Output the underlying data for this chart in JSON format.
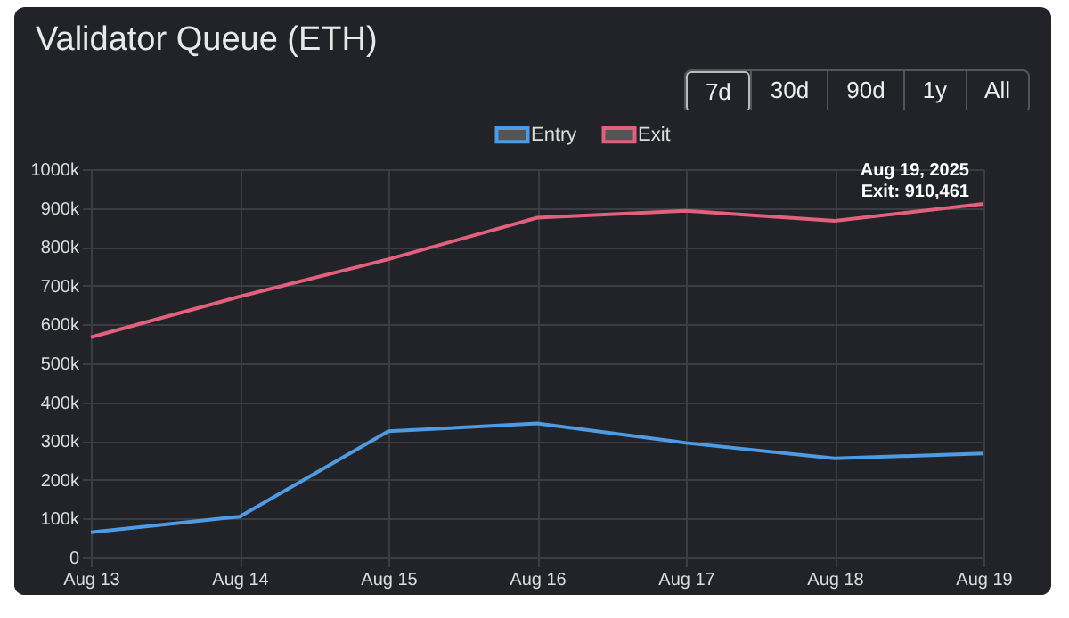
{
  "chart_data": {
    "type": "line",
    "title": "Validator Queue (ETH)",
    "categories": [
      "Aug 13",
      "Aug 14",
      "Aug 15",
      "Aug 16",
      "Aug 17",
      "Aug 18",
      "Aug 19"
    ],
    "series": [
      {
        "name": "Entry",
        "color": "#4f9ae0",
        "values": [
          65000,
          105000,
          325000,
          345000,
          295000,
          255000,
          268000
        ]
      },
      {
        "name": "Exit",
        "color": "#e0607e",
        "values": [
          567000,
          672000,
          768000,
          875000,
          893000,
          867000,
          910461
        ]
      }
    ],
    "ylim": [
      0,
      1000000
    ],
    "yticks": [
      0,
      {
        "value": 100000,
        "label": "100k"
      },
      {
        "value": 200000,
        "label": "200k"
      },
      {
        "value": 300000,
        "label": "300k"
      },
      {
        "value": 400000,
        "label": "400k"
      },
      {
        "value": 500000,
        "label": "500k"
      },
      {
        "value": 600000,
        "label": "600k"
      },
      {
        "value": 700000,
        "label": "700k"
      },
      {
        "value": 800000,
        "label": "800k"
      },
      {
        "value": 900000,
        "label": "900k"
      },
      {
        "value": 1000000,
        "label": "1000k"
      }
    ],
    "grid": true,
    "legend": "top",
    "marker": "none",
    "line_style": "solid",
    "annotations": [
      "7d",
      "30d",
      "90d",
      "1y",
      "All",
      {
        "text": "Aug 19, 2025\nExit: 910,461",
        "x": "Aug 19",
        "y": 910461
      }
    ]
  }
}
